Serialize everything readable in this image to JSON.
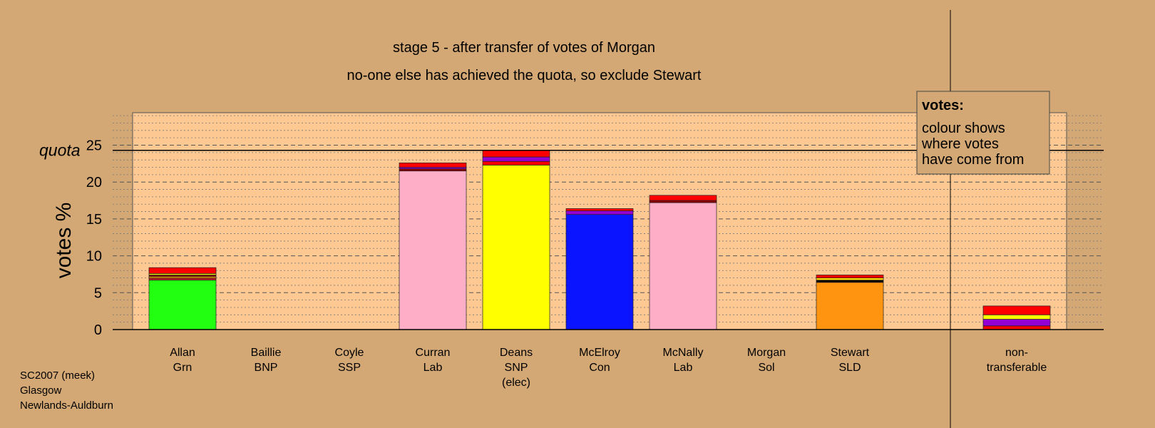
{
  "chart_data": {
    "type": "bar",
    "title": "stage 5 - after transfer of votes of Morgan",
    "subtitle": "no-one else has achieved the quota, so exclude Stewart",
    "ylabel": "votes %",
    "ylim": [
      0,
      29.5
    ],
    "yticks": [
      0,
      5,
      10,
      15,
      20,
      25
    ],
    "quota": 24.3,
    "quota_label": "quota",
    "grid": true,
    "candidates": [
      {
        "name": "Allan",
        "party": "Grn",
        "note": "",
        "segments": [
          {
            "color": "#22ff11",
            "value": 6.7
          },
          {
            "color": "#b22222",
            "value": 0.3
          },
          {
            "color": "#ffa500",
            "value": 0.2
          },
          {
            "color": "#8b0000",
            "value": 0.2
          },
          {
            "color": "#ffff00",
            "value": 0.2
          },
          {
            "color": "#ff0000",
            "value": 0.8
          }
        ]
      },
      {
        "name": "Baillie",
        "party": "BNP",
        "note": "",
        "segments": []
      },
      {
        "name": "Coyle",
        "party": "SSP",
        "note": "",
        "segments": []
      },
      {
        "name": "Curran",
        "party": "Lab",
        "note": "",
        "segments": [
          {
            "color": "#ffaec8",
            "value": 21.5
          },
          {
            "color": "#8b0000",
            "value": 0.3
          },
          {
            "color": "#9400d3",
            "value": 0.2
          },
          {
            "color": "#ff0000",
            "value": 0.6
          }
        ]
      },
      {
        "name": "Deans",
        "party": "SNP",
        "note": "(elec)",
        "segments": [
          {
            "color": "#ffff00",
            "value": 22.3
          },
          {
            "color": "#ff0000",
            "value": 0.5
          },
          {
            "color": "#9400d3",
            "value": 0.6
          },
          {
            "color": "#ff0000",
            "value": 0.9
          }
        ]
      },
      {
        "name": "McElroy",
        "party": "Con",
        "note": "",
        "segments": [
          {
            "color": "#0a14ff",
            "value": 15.6
          },
          {
            "color": "#9400d3",
            "value": 0.5
          },
          {
            "color": "#ff0000",
            "value": 0.3
          }
        ]
      },
      {
        "name": "McNally",
        "party": "Lab",
        "note": "",
        "segments": [
          {
            "color": "#ffaec8",
            "value": 17.2
          },
          {
            "color": "#8b0000",
            "value": 0.3
          },
          {
            "color": "#ff0000",
            "value": 0.7
          }
        ]
      },
      {
        "name": "Morgan",
        "party": "Sol",
        "note": "",
        "segments": []
      },
      {
        "name": "Stewart",
        "party": "SLD",
        "note": "",
        "segments": [
          {
            "color": "#ff9411",
            "value": 6.4
          },
          {
            "color": "#000000",
            "value": 0.3
          },
          {
            "color": "#ffd700",
            "value": 0.3
          },
          {
            "color": "#ff0000",
            "value": 0.4
          }
        ]
      },
      {
        "name": "non-",
        "party": "transferable",
        "note": "",
        "segments": [
          {
            "color": "#ff0000",
            "value": 0.5
          },
          {
            "color": "#9400d3",
            "value": 0.9
          },
          {
            "color": "#ffff00",
            "value": 0.6
          },
          {
            "color": "#ff0000",
            "value": 1.2
          }
        ]
      }
    ]
  },
  "legend": {
    "title": "votes:",
    "lines": [
      "colour shows",
      "where votes",
      "have come from"
    ]
  },
  "footer": {
    "lines": [
      "SC2007 (meek)",
      "Glasgow",
      "Newlands-Auldburn"
    ]
  },
  "colors": {
    "background": "#d4a874",
    "plot_area": "#fdc891",
    "legend_box": "#d4a874"
  }
}
